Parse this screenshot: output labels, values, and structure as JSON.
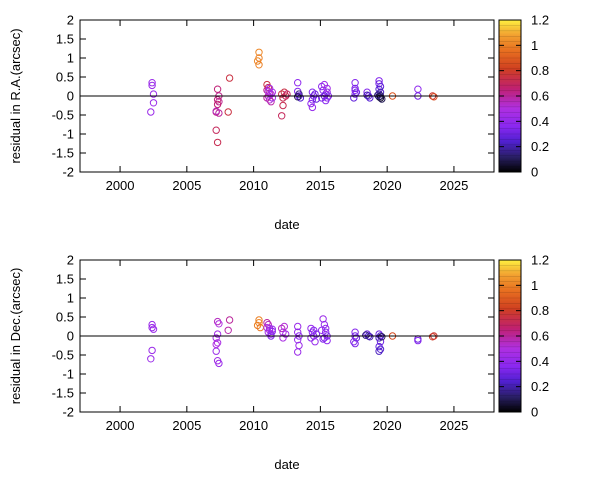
{
  "chart_data": [
    {
      "type": "scatter",
      "xlabel": "date",
      "ylabel": "residual in R.A.(arcsec)",
      "xlim": [
        1997,
        2028
      ],
      "ylim": [
        -2,
        2
      ],
      "xticks": [
        "2000",
        "2005",
        "2010",
        "2015",
        "2020",
        "2025"
      ],
      "yticks": [
        "-2",
        "-1.5",
        "-1",
        "-0.5",
        "0",
        "0.5",
        "1",
        "1.5",
        "2"
      ],
      "zero_line": true,
      "colorbar": {
        "min": 0,
        "max": 1.2,
        "ticks": [
          "0",
          "0.2",
          "0.4",
          "0.6",
          "0.8",
          "1",
          "1.2"
        ]
      },
      "points": [
        {
          "x": 2002.4,
          "y": 0.35,
          "c": 0.42
        },
        {
          "x": 2002.4,
          "y": 0.28,
          "c": 0.42
        },
        {
          "x": 2002.5,
          "y": 0.05,
          "c": 0.42
        },
        {
          "x": 2002.5,
          "y": -0.18,
          "c": 0.42
        },
        {
          "x": 2002.3,
          "y": -0.42,
          "c": 0.42
        },
        {
          "x": 2007.3,
          "y": 0.18,
          "c": 0.65
        },
        {
          "x": 2007.4,
          "y": 0.0,
          "c": 0.62
        },
        {
          "x": 2007.3,
          "y": -0.1,
          "c": 0.65
        },
        {
          "x": 2007.4,
          "y": -0.15,
          "c": 0.62
        },
        {
          "x": 2007.3,
          "y": -0.22,
          "c": 0.66
        },
        {
          "x": 2007.2,
          "y": -0.42,
          "c": 0.65
        },
        {
          "x": 2007.4,
          "y": -0.45,
          "c": 0.6
        },
        {
          "x": 2007.2,
          "y": -0.9,
          "c": 0.7
        },
        {
          "x": 2007.3,
          "y": -1.22,
          "c": 0.72
        },
        {
          "x": 2007.2,
          "y": -0.4,
          "c": 0.55
        },
        {
          "x": 2008.2,
          "y": 0.47,
          "c": 0.75
        },
        {
          "x": 2008.1,
          "y": -0.42,
          "c": 0.75
        },
        {
          "x": 2010.4,
          "y": 1.15,
          "c": 1.02
        },
        {
          "x": 2010.4,
          "y": 1.0,
          "c": 1.0
        },
        {
          "x": 2010.3,
          "y": 0.92,
          "c": 1.02
        },
        {
          "x": 2010.4,
          "y": 0.82,
          "c": 1.0
        },
        {
          "x": 2011.0,
          "y": 0.3,
          "c": 0.75
        },
        {
          "x": 2011.1,
          "y": 0.22,
          "c": 0.7
        },
        {
          "x": 2011.0,
          "y": 0.15,
          "c": 0.62
        },
        {
          "x": 2011.2,
          "y": 0.08,
          "c": 0.58
        },
        {
          "x": 2011.1,
          "y": 0.0,
          "c": 0.55
        },
        {
          "x": 2011.0,
          "y": -0.05,
          "c": 0.6
        },
        {
          "x": 2011.2,
          "y": -0.1,
          "c": 0.52
        },
        {
          "x": 2011.3,
          "y": 0.05,
          "c": 0.5
        },
        {
          "x": 2011.3,
          "y": -0.15,
          "c": 0.58
        },
        {
          "x": 2011.4,
          "y": 0.1,
          "c": 0.48
        },
        {
          "x": 2011.4,
          "y": -0.05,
          "c": 0.45
        },
        {
          "x": 2011.1,
          "y": 0.12,
          "c": 0.5
        },
        {
          "x": 2011.2,
          "y": 0.2,
          "c": 0.45
        },
        {
          "x": 2012.1,
          "y": 0.05,
          "c": 0.75
        },
        {
          "x": 2012.2,
          "y": -0.05,
          "c": 0.72
        },
        {
          "x": 2012.3,
          "y": 0.1,
          "c": 0.74
        },
        {
          "x": 2012.4,
          "y": 0.0,
          "c": 0.7
        },
        {
          "x": 2012.2,
          "y": -0.25,
          "c": 0.72
        },
        {
          "x": 2012.1,
          "y": -0.52,
          "c": 0.7
        },
        {
          "x": 2012.5,
          "y": 0.05,
          "c": 0.68
        },
        {
          "x": 2013.3,
          "y": 0.35,
          "c": 0.38
        },
        {
          "x": 2013.3,
          "y": 0.12,
          "c": 0.35
        },
        {
          "x": 2013.4,
          "y": 0.0,
          "c": 0.3
        },
        {
          "x": 2013.5,
          "y": -0.05,
          "c": 0.25
        },
        {
          "x": 2013.4,
          "y": 0.05,
          "c": 0.15
        },
        {
          "x": 2013.3,
          "y": -0.02,
          "c": 0.1
        },
        {
          "x": 2014.4,
          "y": 0.1,
          "c": 0.35
        },
        {
          "x": 2014.5,
          "y": 0.0,
          "c": 0.32
        },
        {
          "x": 2014.4,
          "y": -0.1,
          "c": 0.35
        },
        {
          "x": 2014.3,
          "y": -0.2,
          "c": 0.38
        },
        {
          "x": 2014.4,
          "y": -0.3,
          "c": 0.4
        },
        {
          "x": 2014.6,
          "y": 0.05,
          "c": 0.3
        },
        {
          "x": 2014.7,
          "y": -0.08,
          "c": 0.28
        },
        {
          "x": 2015.1,
          "y": 0.25,
          "c": 0.38
        },
        {
          "x": 2015.2,
          "y": 0.15,
          "c": 0.35
        },
        {
          "x": 2015.3,
          "y": 0.3,
          "c": 0.42
        },
        {
          "x": 2015.4,
          "y": 0.05,
          "c": 0.32
        },
        {
          "x": 2015.5,
          "y": 0.2,
          "c": 0.45
        },
        {
          "x": 2015.5,
          "y": 0.1,
          "c": 0.4
        },
        {
          "x": 2015.5,
          "y": -0.05,
          "c": 0.38
        },
        {
          "x": 2015.6,
          "y": 0.0,
          "c": 0.35
        },
        {
          "x": 2015.4,
          "y": -0.12,
          "c": 0.36
        },
        {
          "x": 2015.3,
          "y": 0.0,
          "c": 0.3
        },
        {
          "x": 2015.1,
          "y": -0.05,
          "c": 0.34
        },
        {
          "x": 2017.6,
          "y": 0.35,
          "c": 0.35
        },
        {
          "x": 2017.6,
          "y": 0.2,
          "c": 0.33
        },
        {
          "x": 2017.7,
          "y": 0.1,
          "c": 0.3
        },
        {
          "x": 2017.6,
          "y": 0.05,
          "c": 0.32
        },
        {
          "x": 2017.5,
          "y": -0.05,
          "c": 0.28
        },
        {
          "x": 2017.6,
          "y": 0.15,
          "c": 0.36
        },
        {
          "x": 2018.5,
          "y": 0.1,
          "c": 0.35
        },
        {
          "x": 2018.6,
          "y": 0.0,
          "c": 0.3
        },
        {
          "x": 2018.7,
          "y": -0.05,
          "c": 0.25
        },
        {
          "x": 2018.5,
          "y": 0.02,
          "c": 0.2
        },
        {
          "x": 2019.4,
          "y": 0.4,
          "c": 0.35
        },
        {
          "x": 2019.4,
          "y": 0.32,
          "c": 0.3
        },
        {
          "x": 2019.5,
          "y": 0.25,
          "c": 0.28
        },
        {
          "x": 2019.4,
          "y": 0.18,
          "c": 0.25
        },
        {
          "x": 2019.5,
          "y": 0.1,
          "c": 0.22
        },
        {
          "x": 2019.4,
          "y": 0.05,
          "c": 0.18
        },
        {
          "x": 2019.5,
          "y": 0.0,
          "c": 0.12
        },
        {
          "x": 2019.4,
          "y": -0.02,
          "c": 0.08
        },
        {
          "x": 2019.5,
          "y": -0.05,
          "c": 0.05
        },
        {
          "x": 2019.6,
          "y": -0.08,
          "c": 0.1
        },
        {
          "x": 2019.3,
          "y": 0.02,
          "c": 0.15
        },
        {
          "x": 2020.4,
          "y": 0.0,
          "c": 0.88
        },
        {
          "x": 2022.3,
          "y": 0.18,
          "c": 0.38
        },
        {
          "x": 2022.3,
          "y": 0.0,
          "c": 0.32
        },
        {
          "x": 2023.4,
          "y": 0.0,
          "c": 0.78
        },
        {
          "x": 2023.5,
          "y": -0.02,
          "c": 0.85
        }
      ]
    },
    {
      "type": "scatter",
      "xlabel": "date",
      "ylabel": "residual in Dec.(arcsec)",
      "xlim": [
        1997,
        2028
      ],
      "ylim": [
        -2,
        2
      ],
      "xticks": [
        "2000",
        "2005",
        "2010",
        "2015",
        "2020",
        "2025"
      ],
      "yticks": [
        "-2",
        "-1.5",
        "-1",
        "-0.5",
        "0",
        "0.5",
        "1",
        "1.5",
        "2"
      ],
      "zero_line": true,
      "colorbar": {
        "min": 0,
        "max": 1.2,
        "ticks": [
          "0",
          "0.2",
          "0.4",
          "0.6",
          "0.8",
          "1",
          "1.2"
        ]
      },
      "points": [
        {
          "x": 2002.4,
          "y": 0.3,
          "c": 0.42
        },
        {
          "x": 2002.4,
          "y": 0.22,
          "c": 0.42
        },
        {
          "x": 2002.5,
          "y": 0.18,
          "c": 0.42
        },
        {
          "x": 2002.4,
          "y": -0.38,
          "c": 0.42
        },
        {
          "x": 2002.3,
          "y": -0.6,
          "c": 0.42
        },
        {
          "x": 2007.3,
          "y": 0.38,
          "c": 0.55
        },
        {
          "x": 2007.4,
          "y": 0.32,
          "c": 0.5
        },
        {
          "x": 2007.3,
          "y": 0.05,
          "c": 0.45
        },
        {
          "x": 2007.2,
          "y": -0.05,
          "c": 0.45
        },
        {
          "x": 2007.3,
          "y": -0.18,
          "c": 0.48
        },
        {
          "x": 2007.2,
          "y": -0.4,
          "c": 0.42
        },
        {
          "x": 2007.3,
          "y": -0.65,
          "c": 0.45
        },
        {
          "x": 2007.4,
          "y": -0.72,
          "c": 0.42
        },
        {
          "x": 2007.2,
          "y": -0.22,
          "c": 0.5
        },
        {
          "x": 2008.2,
          "y": 0.42,
          "c": 0.6
        },
        {
          "x": 2008.1,
          "y": 0.15,
          "c": 0.58
        },
        {
          "x": 2010.4,
          "y": 0.42,
          "c": 1.0
        },
        {
          "x": 2010.4,
          "y": 0.35,
          "c": 1.02
        },
        {
          "x": 2010.3,
          "y": 0.28,
          "c": 1.0
        },
        {
          "x": 2010.5,
          "y": 0.22,
          "c": 0.98
        },
        {
          "x": 2011.0,
          "y": 0.35,
          "c": 0.6
        },
        {
          "x": 2011.1,
          "y": 0.3,
          "c": 0.55
        },
        {
          "x": 2011.0,
          "y": 0.22,
          "c": 0.5
        },
        {
          "x": 2011.2,
          "y": 0.15,
          "c": 0.48
        },
        {
          "x": 2011.1,
          "y": 0.1,
          "c": 0.45
        },
        {
          "x": 2011.3,
          "y": 0.05,
          "c": 0.4
        },
        {
          "x": 2011.2,
          "y": 0.2,
          "c": 0.45
        },
        {
          "x": 2011.4,
          "y": 0.12,
          "c": 0.38
        },
        {
          "x": 2011.3,
          "y": 0.0,
          "c": 0.35
        },
        {
          "x": 2011.4,
          "y": 0.18,
          "c": 0.42
        },
        {
          "x": 2012.1,
          "y": 0.2,
          "c": 0.55
        },
        {
          "x": 2012.2,
          "y": 0.1,
          "c": 0.5
        },
        {
          "x": 2012.3,
          "y": 0.25,
          "c": 0.52
        },
        {
          "x": 2012.2,
          "y": -0.05,
          "c": 0.48
        },
        {
          "x": 2012.4,
          "y": 0.05,
          "c": 0.45
        },
        {
          "x": 2013.3,
          "y": 0.25,
          "c": 0.42
        },
        {
          "x": 2013.3,
          "y": 0.1,
          "c": 0.4
        },
        {
          "x": 2013.4,
          "y": 0.0,
          "c": 0.38
        },
        {
          "x": 2013.3,
          "y": -0.1,
          "c": 0.4
        },
        {
          "x": 2013.4,
          "y": -0.25,
          "c": 0.42
        },
        {
          "x": 2013.3,
          "y": -0.42,
          "c": 0.42
        },
        {
          "x": 2014.3,
          "y": 0.2,
          "c": 0.4
        },
        {
          "x": 2014.4,
          "y": 0.1,
          "c": 0.38
        },
        {
          "x": 2014.5,
          "y": 0.0,
          "c": 0.35
        },
        {
          "x": 2014.3,
          "y": -0.05,
          "c": 0.38
        },
        {
          "x": 2014.6,
          "y": -0.15,
          "c": 0.4
        },
        {
          "x": 2014.7,
          "y": 0.05,
          "c": 0.32
        },
        {
          "x": 2014.5,
          "y": 0.15,
          "c": 0.36
        },
        {
          "x": 2015.2,
          "y": 0.45,
          "c": 0.42
        },
        {
          "x": 2015.3,
          "y": 0.3,
          "c": 0.4
        },
        {
          "x": 2015.1,
          "y": 0.15,
          "c": 0.38
        },
        {
          "x": 2015.4,
          "y": 0.1,
          "c": 0.35
        },
        {
          "x": 2015.5,
          "y": 0.0,
          "c": 0.32
        },
        {
          "x": 2015.3,
          "y": -0.05,
          "c": 0.36
        },
        {
          "x": 2015.5,
          "y": -0.12,
          "c": 0.38
        },
        {
          "x": 2015.4,
          "y": 0.2,
          "c": 0.4
        },
        {
          "x": 2015.2,
          "y": -0.08,
          "c": 0.34
        },
        {
          "x": 2017.6,
          "y": 0.1,
          "c": 0.35
        },
        {
          "x": 2017.6,
          "y": 0.0,
          "c": 0.32
        },
        {
          "x": 2017.7,
          "y": -0.05,
          "c": 0.3
        },
        {
          "x": 2017.5,
          "y": -0.15,
          "c": 0.35
        },
        {
          "x": 2017.6,
          "y": -0.2,
          "c": 0.33
        },
        {
          "x": 2018.5,
          "y": 0.05,
          "c": 0.3
        },
        {
          "x": 2018.6,
          "y": 0.0,
          "c": 0.25
        },
        {
          "x": 2018.7,
          "y": -0.02,
          "c": 0.2
        },
        {
          "x": 2018.4,
          "y": 0.02,
          "c": 0.15
        },
        {
          "x": 2019.4,
          "y": 0.05,
          "c": 0.3
        },
        {
          "x": 2019.5,
          "y": 0.0,
          "c": 0.25
        },
        {
          "x": 2019.4,
          "y": -0.05,
          "c": 0.2
        },
        {
          "x": 2019.5,
          "y": -0.15,
          "c": 0.3
        },
        {
          "x": 2019.4,
          "y": -0.28,
          "c": 0.28
        },
        {
          "x": 2019.5,
          "y": -0.35,
          "c": 0.25
        },
        {
          "x": 2019.4,
          "y": -0.4,
          "c": 0.22
        },
        {
          "x": 2019.6,
          "y": -0.02,
          "c": 0.1
        },
        {
          "x": 2020.4,
          "y": 0.0,
          "c": 0.85
        },
        {
          "x": 2022.3,
          "y": -0.08,
          "c": 0.3
        },
        {
          "x": 2022.3,
          "y": -0.12,
          "c": 0.35
        },
        {
          "x": 2023.4,
          "y": -0.02,
          "c": 0.8
        },
        {
          "x": 2023.5,
          "y": 0.0,
          "c": 0.78
        }
      ]
    }
  ]
}
